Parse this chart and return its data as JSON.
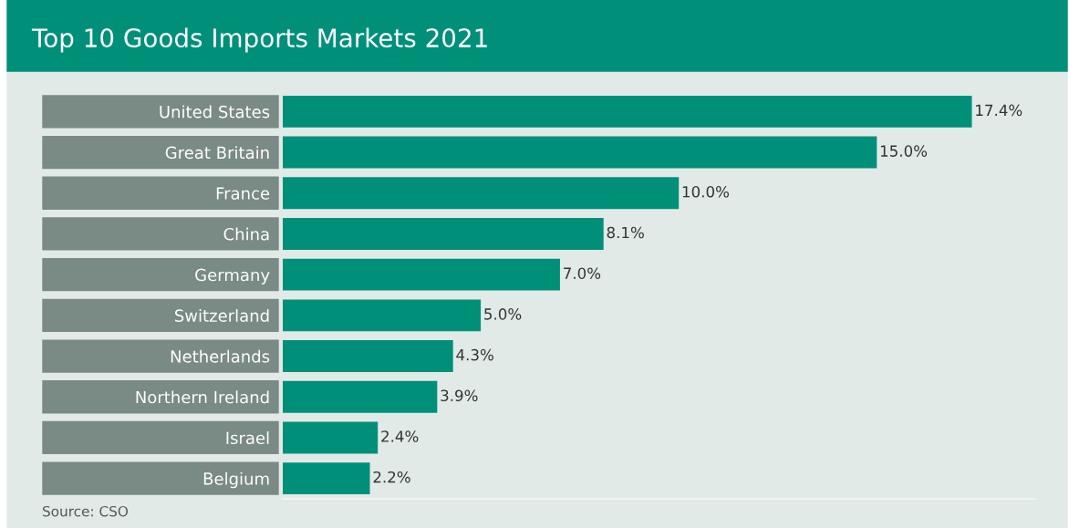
{
  "chart_data": {
    "type": "bar",
    "orientation": "horizontal",
    "title": "Top 10 Goods Imports Markets 2021",
    "categories": [
      "United States",
      "Great Britain",
      "France",
      "China",
      "Germany",
      "Switzerland",
      "Netherlands",
      "Northern Ireland",
      "Israel",
      "Belgium"
    ],
    "values": [
      17.4,
      15.0,
      10.0,
      8.1,
      7.0,
      5.0,
      4.3,
      3.9,
      2.4,
      2.2
    ],
    "value_labels": [
      "17.4%",
      "15.0%",
      "10.0%",
      "8.1%",
      "7.0%",
      "5.0%",
      "4.3%",
      "3.9%",
      "2.4%",
      "2.2%"
    ],
    "color": "#00907a",
    "xlim": [
      0,
      19
    ],
    "grid": false,
    "legend": false,
    "annotations": [
      "Source: CSO"
    ]
  }
}
